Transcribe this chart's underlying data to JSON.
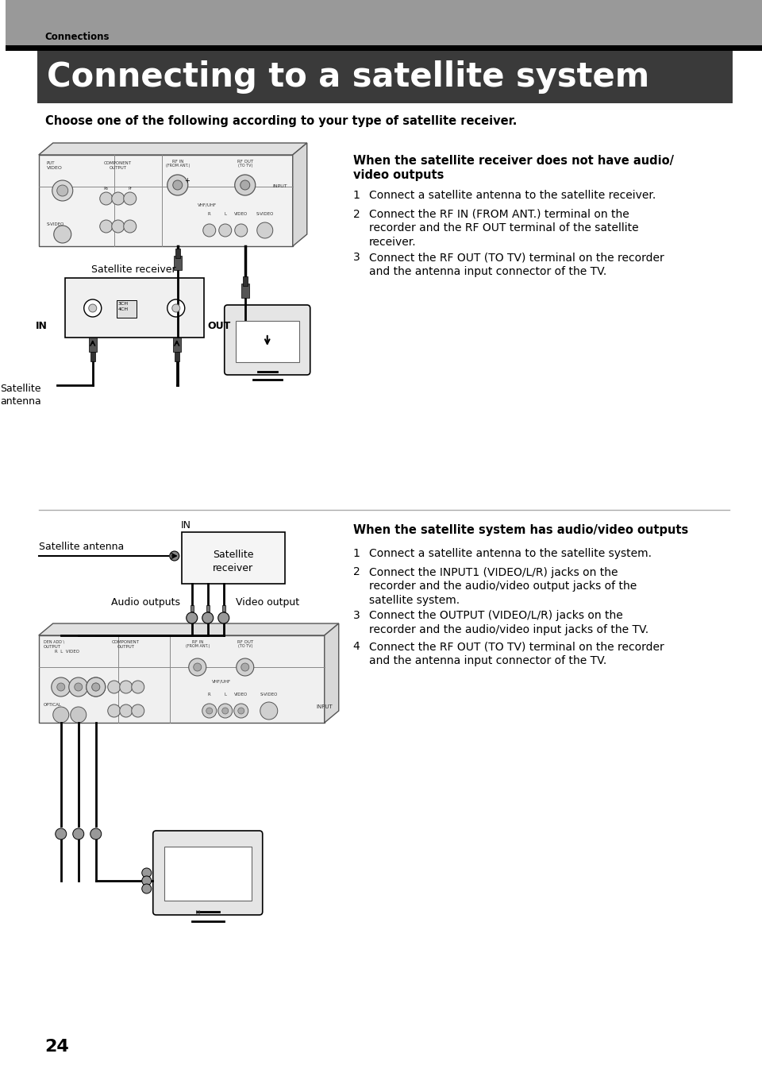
{
  "page_bg": "#ffffff",
  "header_bg": "#999999",
  "title_bg": "#3a3a3a",
  "header_text": "Connections",
  "title_text": "Connecting to a satellite system",
  "title_text_color": "#ffffff",
  "subtitle": "Choose one of the following according to your type of satellite receiver.",
  "section1_heading_line1": "When the satellite receiver does not have audio/",
  "section1_heading_line2": "video outputs",
  "section1_items": [
    "Connect a satellite antenna to the satellite receiver.",
    "Connect the RF IN (FROM ANT.) terminal on the\nrecorder and the RF OUT terminal of the satellite\nreceiver.",
    "Connect the RF OUT (TO TV) terminal on the recorder\nand the antenna input connector of the TV."
  ],
  "section2_heading": "When the satellite system has audio/video outputs",
  "section2_items": [
    "Connect a satellite antenna to the satellite system.",
    "Connect the INPUT1 (VIDEO/L/R) jacks on the\nrecorder and the audio/video output jacks of the\nsatellite system.",
    "Connect the OUTPUT (VIDEO/L/R) jacks on the\nrecorder and the audio/video input jacks of the TV.",
    "Connect the RF OUT (TO TV) terminal on the recorder\nand the antenna input connector of the TV."
  ],
  "page_number": "24"
}
